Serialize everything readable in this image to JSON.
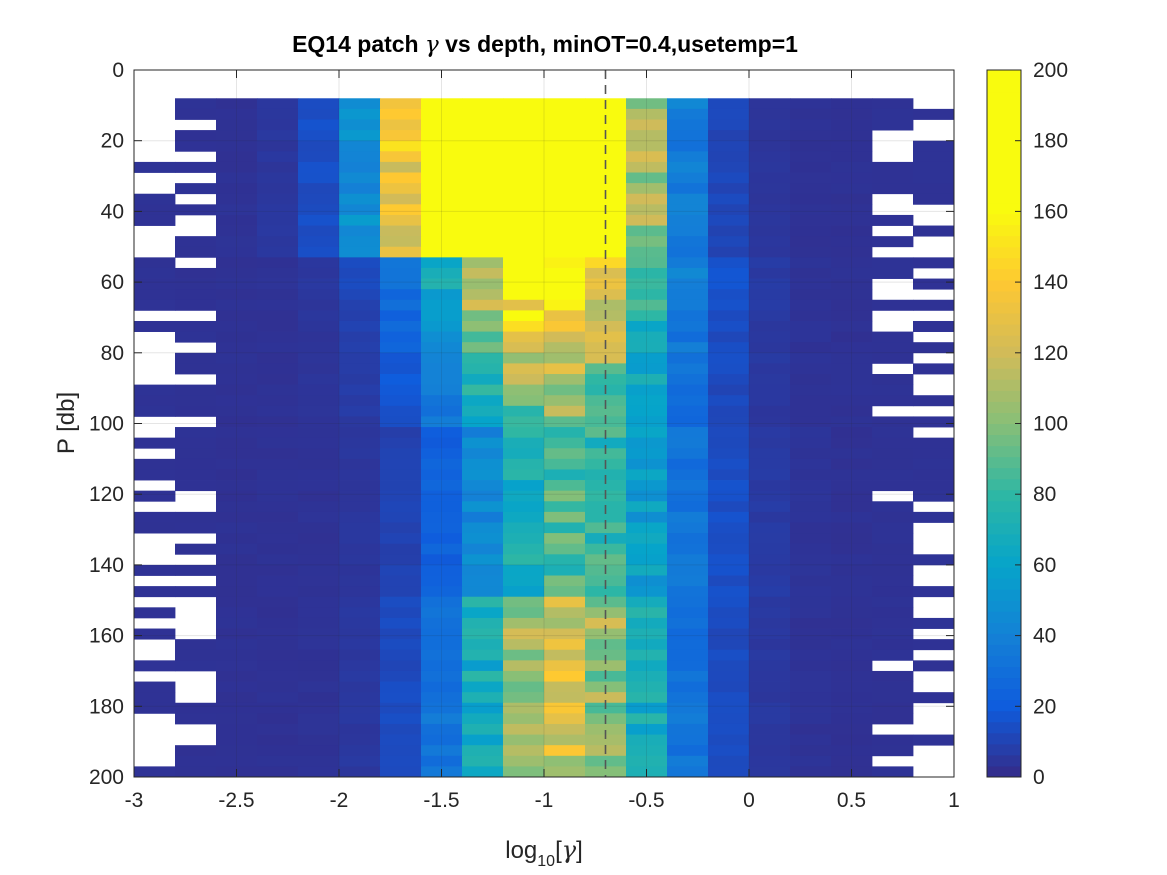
{
  "chart_data": {
    "type": "heatmap",
    "title": {
      "prefix": "EQ14 patch ",
      "symbol": "γ",
      "suffix": " vs depth, minOT=0.4,usetemp=1"
    },
    "xlabel": {
      "base": "log",
      "subscript": "10",
      "open": "[",
      "symbol": "γ",
      "close": "]"
    },
    "ylabel": "P [db]",
    "xlim": [
      -3,
      1
    ],
    "ylim": [
      0,
      200
    ],
    "y_reversed": true,
    "grid": true,
    "x_ticks": [
      "-3",
      "-2.5",
      "-2",
      "-1.5",
      "-1",
      "-0.5",
      "0",
      "0.5",
      "1"
    ],
    "x_tick_values": [
      -3,
      -2.5,
      -2,
      -1.5,
      -1,
      -0.5,
      0,
      0.5,
      1
    ],
    "y_ticks": [
      "0",
      "20",
      "40",
      "60",
      "80",
      "100",
      "120",
      "140",
      "160",
      "180",
      "200"
    ],
    "y_tick_values": [
      0,
      20,
      40,
      60,
      80,
      100,
      120,
      140,
      160,
      180,
      200
    ],
    "colorbar": {
      "min": 0,
      "max": 200,
      "ticks": [
        "0",
        "20",
        "40",
        "60",
        "80",
        "100",
        "120",
        "140",
        "160",
        "180",
        "200"
      ],
      "tick_values": [
        0,
        20,
        40,
        60,
        80,
        100,
        120,
        140,
        160,
        180,
        200
      ],
      "colormap": "parula"
    },
    "reference_line": {
      "x": -0.7,
      "style": "dashed",
      "color": "#555555"
    },
    "x_bin_edges": [
      -3,
      -2.8,
      -2.6,
      -2.4,
      -2.2,
      -2,
      -1.8,
      -1.6,
      -1.4,
      -1.2,
      -1,
      -0.8,
      -0.6,
      -0.4,
      -0.2,
      0,
      0.2,
      0.4,
      0.6,
      0.8,
      1
    ],
    "y_bin_width": 3,
    "y_start": 8
  }
}
